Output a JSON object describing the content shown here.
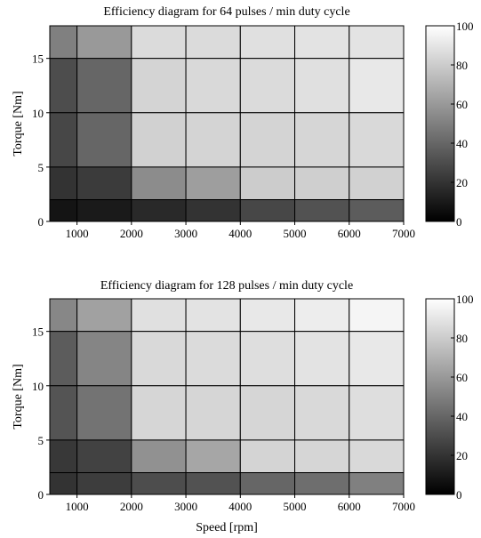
{
  "chart_data": [
    {
      "type": "heatmap",
      "title": "Efficiency diagram for 64 pulses / min duty cycle",
      "xlabel": "",
      "ylabel": "Torque [Nm]",
      "x_edges": [
        500,
        1000,
        2000,
        3000,
        4000,
        5000,
        6000,
        7000
      ],
      "y_edges": [
        0,
        2,
        5,
        10,
        15,
        18
      ],
      "xlim": [
        500,
        7000
      ],
      "ylim": [
        0,
        18
      ],
      "xticks": [
        1000,
        2000,
        3000,
        4000,
        5000,
        6000,
        7000
      ],
      "yticks": [
        0,
        5,
        10,
        15
      ],
      "colorbar": {
        "min": 0,
        "max": 100,
        "ticks": [
          0,
          20,
          40,
          60,
          80,
          100
        ]
      },
      "values": [
        [
          50,
          60,
          86,
          86,
          88,
          89,
          89
        ],
        [
          30,
          40,
          83,
          85,
          86,
          88,
          91
        ],
        [
          28,
          40,
          82,
          83,
          83,
          84,
          85
        ],
        [
          20,
          23,
          55,
          62,
          80,
          81,
          82
        ],
        [
          8,
          10,
          16,
          20,
          28,
          32,
          36
        ]
      ]
    },
    {
      "type": "heatmap",
      "title": "Efficiency diagram for 128 pulses / min duty cycle",
      "xlabel": "Speed [rpm]",
      "ylabel": "Torque [Nm]",
      "x_edges": [
        500,
        1000,
        2000,
        3000,
        4000,
        5000,
        6000,
        7000
      ],
      "y_edges": [
        0,
        2,
        5,
        10,
        15,
        18
      ],
      "xlim": [
        500,
        7000
      ],
      "ylim": [
        0,
        18
      ],
      "xticks": [
        1000,
        2000,
        3000,
        4000,
        5000,
        6000,
        7000
      ],
      "yticks": [
        0,
        5,
        10,
        15
      ],
      "colorbar": {
        "min": 0,
        "max": 100,
        "ticks": [
          0,
          20,
          40,
          60,
          80,
          100
        ]
      },
      "values": [
        [
          53,
          63,
          88,
          89,
          91,
          93,
          96
        ],
        [
          36,
          52,
          85,
          86,
          87,
          89,
          91
        ],
        [
          33,
          45,
          84,
          84,
          84,
          85,
          87
        ],
        [
          22,
          26,
          57,
          65,
          83,
          84,
          85
        ],
        [
          20,
          24,
          30,
          32,
          40,
          43,
          50
        ]
      ]
    }
  ]
}
